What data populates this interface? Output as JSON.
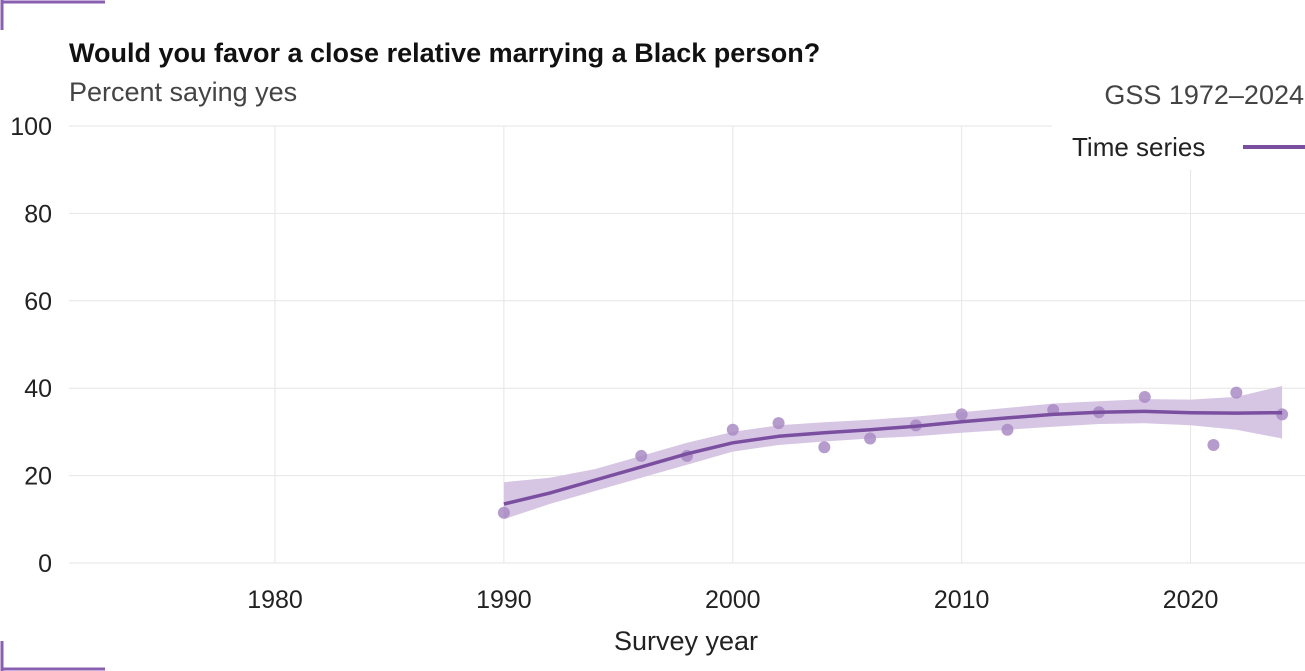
{
  "chart_data": {
    "type": "line",
    "title": "Would you favor a close relative marrying a Black person?",
    "subtitle": "Percent saying yes",
    "caption": "GSS 1972–2024",
    "xlabel": "Survey year",
    "ylabel": "",
    "xlim": [
      1971,
      2025
    ],
    "ylim": [
      0,
      100
    ],
    "x_ticks": [
      1980,
      1990,
      2000,
      2010,
      2020
    ],
    "y_ticks": [
      0,
      20,
      40,
      60,
      80,
      100
    ],
    "grid": true,
    "legend": {
      "placement": "top-right",
      "entries": [
        "Time series"
      ]
    },
    "colors": {
      "line": "#7b4fa0",
      "band": "#d6c6e3",
      "points": "#a98bc4"
    },
    "points": [
      {
        "x": 1990,
        "y": 11.5
      },
      {
        "x": 1996,
        "y": 24.5
      },
      {
        "x": 1998,
        "y": 24.5
      },
      {
        "x": 2000,
        "y": 30.5
      },
      {
        "x": 2002,
        "y": 32.0
      },
      {
        "x": 2004,
        "y": 26.5
      },
      {
        "x": 2006,
        "y": 28.5
      },
      {
        "x": 2008,
        "y": 31.5
      },
      {
        "x": 2010,
        "y": 34.0
      },
      {
        "x": 2012,
        "y": 30.5
      },
      {
        "x": 2014,
        "y": 35.0
      },
      {
        "x": 2016,
        "y": 34.5
      },
      {
        "x": 2018,
        "y": 38.0
      },
      {
        "x": 2021,
        "y": 27.0
      },
      {
        "x": 2022,
        "y": 39.0
      },
      {
        "x": 2024,
        "y": 34.0
      }
    ],
    "trend": {
      "name": "Time series",
      "x": [
        1990,
        1992,
        1994,
        1996,
        1998,
        2000,
        2002,
        2004,
        2006,
        2008,
        2010,
        2012,
        2014,
        2016,
        2018,
        2020,
        2022,
        2024
      ],
      "y": [
        13.5,
        16.0,
        19.0,
        22.0,
        25.0,
        27.5,
        29.0,
        29.8,
        30.5,
        31.3,
        32.3,
        33.2,
        34.0,
        34.5,
        34.7,
        34.4,
        34.3,
        34.4
      ],
      "lower": [
        10.0,
        13.5,
        16.5,
        19.5,
        22.5,
        25.5,
        27.0,
        27.8,
        28.5,
        29.0,
        29.8,
        30.5,
        31.2,
        31.8,
        32.0,
        31.5,
        30.5,
        28.5
      ],
      "upper": [
        18.5,
        19.5,
        21.5,
        24.5,
        27.5,
        30.0,
        31.5,
        32.2,
        32.8,
        33.5,
        34.5,
        35.5,
        36.5,
        37.0,
        37.5,
        37.4,
        38.0,
        40.5
      ]
    }
  }
}
